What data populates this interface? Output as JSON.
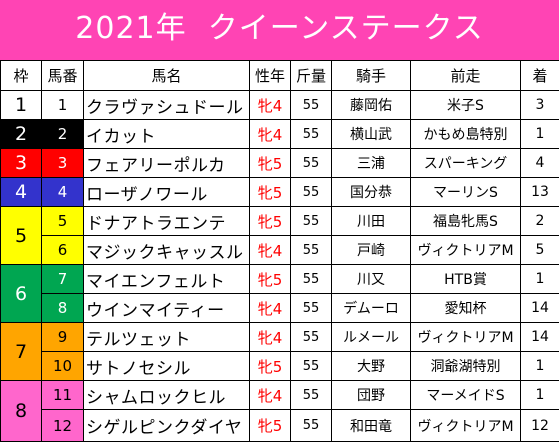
{
  "title": "2021年  クイーンステークス",
  "headers": [
    "枠",
    "馬番",
    "馬名",
    "性年",
    "斤量",
    "騎手",
    "前走",
    "着"
  ],
  "waku_colors": {
    "1": {
      "bg": "#ffffff",
      "fg": "#000000"
    },
    "2": {
      "bg": "#000000",
      "fg": "#ffffff"
    },
    "3": {
      "bg": "#ff0000",
      "fg": "#ffffff"
    },
    "4": {
      "bg": "#3333cc",
      "fg": "#ffffff"
    },
    "5": {
      "bg": "#ffff00",
      "fg": "#000000"
    },
    "6": {
      "bg": "#00a651",
      "fg": "#ffffff"
    },
    "7": {
      "bg": "#ffa500",
      "fg": "#000000"
    },
    "8": {
      "bg": "#ff66cc",
      "fg": "#000000"
    }
  },
  "rows": [
    {
      "waku": "1",
      "num": "1",
      "name": "クラヴァシュドール",
      "sex": "牝4",
      "weight": "55",
      "jockey": "藤岡佑",
      "prev": "米子S",
      "pos": "3"
    },
    {
      "waku": "2",
      "num": "2",
      "name": "イカット",
      "sex": "牝4",
      "weight": "55",
      "jockey": "横山武",
      "prev": "かもめ島特別",
      "pos": "1"
    },
    {
      "waku": "3",
      "num": "3",
      "name": "フェアリーポルカ",
      "sex": "牝5",
      "weight": "55",
      "jockey": "三浦",
      "prev": "スパーキング",
      "pos": "4"
    },
    {
      "waku": "4",
      "num": "4",
      "name": "ローザノワール",
      "sex": "牝5",
      "weight": "55",
      "jockey": "国分恭",
      "prev": "マーリンS",
      "pos": "13"
    },
    {
      "waku": "5",
      "num": "5",
      "name": "ドナアトラエンテ",
      "sex": "牝5",
      "weight": "55",
      "jockey": "川田",
      "prev": "福島牝馬S",
      "pos": "2"
    },
    {
      "waku": "5",
      "num": "6",
      "name": "マジックキャッスル",
      "sex": "牝4",
      "weight": "55",
      "jockey": "戸崎",
      "prev": "ヴィクトリアM",
      "pos": "5"
    },
    {
      "waku": "6",
      "num": "7",
      "name": "マイエンフェルト",
      "sex": "牝5",
      "weight": "55",
      "jockey": "川又",
      "prev": "HTB賞",
      "pos": "1"
    },
    {
      "waku": "6",
      "num": "8",
      "name": "ウインマイティー",
      "sex": "牝4",
      "weight": "55",
      "jockey": "デムーロ",
      "prev": "愛知杯",
      "pos": "14"
    },
    {
      "waku": "7",
      "num": "9",
      "name": "テルツェット",
      "sex": "牝4",
      "weight": "55",
      "jockey": "ルメール",
      "prev": "ヴィクトリアM",
      "pos": "14"
    },
    {
      "waku": "7",
      "num": "10",
      "name": "サトノセシル",
      "sex": "牝5",
      "weight": "55",
      "jockey": "大野",
      "prev": "洞爺湖特別",
      "pos": "1"
    },
    {
      "waku": "8",
      "num": "11",
      "name": "シャムロックヒル",
      "sex": "牝4",
      "weight": "55",
      "jockey": "団野",
      "prev": "マーメイドS",
      "pos": "1"
    },
    {
      "waku": "8",
      "num": "12",
      "name": "シゲルピンクダイヤ",
      "sex": "牝5",
      "weight": "55",
      "jockey": "和田竜",
      "prev": "ヴィクトリアM",
      "pos": "12"
    }
  ]
}
